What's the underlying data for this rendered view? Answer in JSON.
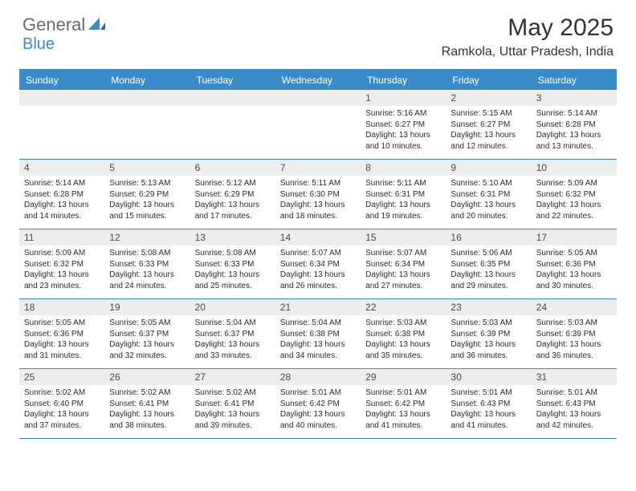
{
  "brand": {
    "part1": "General",
    "part2": "Blue"
  },
  "title": "May 2025",
  "location": "Ramkola, Uttar Pradesh, India",
  "accent_color": "#3b8bc8",
  "header_bg": "#eceded",
  "weekdays": [
    "Sunday",
    "Monday",
    "Tuesday",
    "Wednesday",
    "Thursday",
    "Friday",
    "Saturday"
  ],
  "weeks": [
    [
      null,
      null,
      null,
      null,
      {
        "n": "1",
        "sr": "5:16 AM",
        "ss": "6:27 PM",
        "dl1": "13 hours",
        "dl2": "and 10 minutes."
      },
      {
        "n": "2",
        "sr": "5:15 AM",
        "ss": "6:27 PM",
        "dl1": "13 hours",
        "dl2": "and 12 minutes."
      },
      {
        "n": "3",
        "sr": "5:14 AM",
        "ss": "6:28 PM",
        "dl1": "13 hours",
        "dl2": "and 13 minutes."
      }
    ],
    [
      {
        "n": "4",
        "sr": "5:14 AM",
        "ss": "6:28 PM",
        "dl1": "13 hours",
        "dl2": "and 14 minutes."
      },
      {
        "n": "5",
        "sr": "5:13 AM",
        "ss": "6:29 PM",
        "dl1": "13 hours",
        "dl2": "and 15 minutes."
      },
      {
        "n": "6",
        "sr": "5:12 AM",
        "ss": "6:29 PM",
        "dl1": "13 hours",
        "dl2": "and 17 minutes."
      },
      {
        "n": "7",
        "sr": "5:11 AM",
        "ss": "6:30 PM",
        "dl1": "13 hours",
        "dl2": "and 18 minutes."
      },
      {
        "n": "8",
        "sr": "5:11 AM",
        "ss": "6:31 PM",
        "dl1": "13 hours",
        "dl2": "and 19 minutes."
      },
      {
        "n": "9",
        "sr": "5:10 AM",
        "ss": "6:31 PM",
        "dl1": "13 hours",
        "dl2": "and 20 minutes."
      },
      {
        "n": "10",
        "sr": "5:09 AM",
        "ss": "6:32 PM",
        "dl1": "13 hours",
        "dl2": "and 22 minutes."
      }
    ],
    [
      {
        "n": "11",
        "sr": "5:09 AM",
        "ss": "6:32 PM",
        "dl1": "13 hours",
        "dl2": "and 23 minutes."
      },
      {
        "n": "12",
        "sr": "5:08 AM",
        "ss": "6:33 PM",
        "dl1": "13 hours",
        "dl2": "and 24 minutes."
      },
      {
        "n": "13",
        "sr": "5:08 AM",
        "ss": "6:33 PM",
        "dl1": "13 hours",
        "dl2": "and 25 minutes."
      },
      {
        "n": "14",
        "sr": "5:07 AM",
        "ss": "6:34 PM",
        "dl1": "13 hours",
        "dl2": "and 26 minutes."
      },
      {
        "n": "15",
        "sr": "5:07 AM",
        "ss": "6:34 PM",
        "dl1": "13 hours",
        "dl2": "and 27 minutes."
      },
      {
        "n": "16",
        "sr": "5:06 AM",
        "ss": "6:35 PM",
        "dl1": "13 hours",
        "dl2": "and 29 minutes."
      },
      {
        "n": "17",
        "sr": "5:05 AM",
        "ss": "6:36 PM",
        "dl1": "13 hours",
        "dl2": "and 30 minutes."
      }
    ],
    [
      {
        "n": "18",
        "sr": "5:05 AM",
        "ss": "6:36 PM",
        "dl1": "13 hours",
        "dl2": "and 31 minutes."
      },
      {
        "n": "19",
        "sr": "5:05 AM",
        "ss": "6:37 PM",
        "dl1": "13 hours",
        "dl2": "and 32 minutes."
      },
      {
        "n": "20",
        "sr": "5:04 AM",
        "ss": "6:37 PM",
        "dl1": "13 hours",
        "dl2": "and 33 minutes."
      },
      {
        "n": "21",
        "sr": "5:04 AM",
        "ss": "6:38 PM",
        "dl1": "13 hours",
        "dl2": "and 34 minutes."
      },
      {
        "n": "22",
        "sr": "5:03 AM",
        "ss": "6:38 PM",
        "dl1": "13 hours",
        "dl2": "and 35 minutes."
      },
      {
        "n": "23",
        "sr": "5:03 AM",
        "ss": "6:39 PM",
        "dl1": "13 hours",
        "dl2": "and 36 minutes."
      },
      {
        "n": "24",
        "sr": "5:03 AM",
        "ss": "6:39 PM",
        "dl1": "13 hours",
        "dl2": "and 36 minutes."
      }
    ],
    [
      {
        "n": "25",
        "sr": "5:02 AM",
        "ss": "6:40 PM",
        "dl1": "13 hours",
        "dl2": "and 37 minutes."
      },
      {
        "n": "26",
        "sr": "5:02 AM",
        "ss": "6:41 PM",
        "dl1": "13 hours",
        "dl2": "and 38 minutes."
      },
      {
        "n": "27",
        "sr": "5:02 AM",
        "ss": "6:41 PM",
        "dl1": "13 hours",
        "dl2": "and 39 minutes."
      },
      {
        "n": "28",
        "sr": "5:01 AM",
        "ss": "6:42 PM",
        "dl1": "13 hours",
        "dl2": "and 40 minutes."
      },
      {
        "n": "29",
        "sr": "5:01 AM",
        "ss": "6:42 PM",
        "dl1": "13 hours",
        "dl2": "and 41 minutes."
      },
      {
        "n": "30",
        "sr": "5:01 AM",
        "ss": "6:43 PM",
        "dl1": "13 hours",
        "dl2": "and 41 minutes."
      },
      {
        "n": "31",
        "sr": "5:01 AM",
        "ss": "6:43 PM",
        "dl1": "13 hours",
        "dl2": "and 42 minutes."
      }
    ]
  ],
  "labels": {
    "sunrise": "Sunrise: ",
    "sunset": "Sunset: ",
    "daylight": "Daylight: "
  }
}
